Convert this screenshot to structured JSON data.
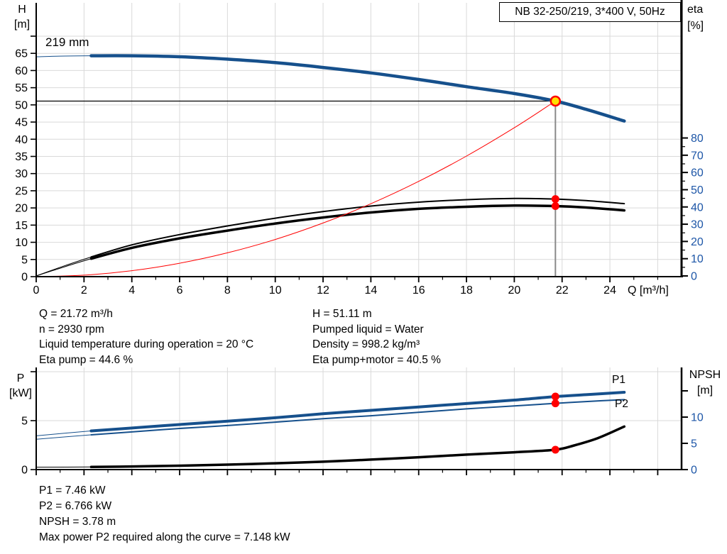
{
  "colors": {
    "curve_blue": "#16508c",
    "label_blue": "#1d56a7",
    "red": "#ff0000",
    "marker_yellow": "#ffe000",
    "grid": "#d9d9d9",
    "axis": "#000000",
    "op_line_gray": "#8a8a8a"
  },
  "texts": {
    "top_left": [
      "Q = 21.72 m³/h",
      "n = 2930 rpm",
      "Liquid temperature during operation = 20 °C",
      "Eta pump = 44.6 %"
    ],
    "top_right": [
      "H = 51.11 m",
      "Pumped liquid = Water",
      "Density = 998.2 kg/m³",
      "Eta pump+motor = 40.5 %"
    ],
    "bottom": [
      "P1 = 7.46 kW",
      "P2 = 6.766 kW",
      "NPSH = 3.78 m",
      "Max power P2 required along the curve = 7.148 kW"
    ]
  },
  "chart_data": [
    {
      "type": "line",
      "name": "qh-eta-chart",
      "title": "NB 32-250/219, 3*400 V, 50Hz",
      "x_axis": {
        "label": "Q [m³/h]",
        "min": 0,
        "max": 27,
        "major_tick_values": [
          0,
          2,
          4,
          6,
          8,
          10,
          12,
          14,
          16,
          18,
          20,
          22,
          24
        ],
        "minor_step": 1
      },
      "left_axis": {
        "label": "H [m]",
        "label_lines": [
          "H",
          "[m]"
        ],
        "min": 0,
        "max": 70,
        "major_step": 5,
        "labeled_ticks": [
          0,
          5,
          10,
          15,
          20,
          25,
          30,
          35,
          40,
          45,
          50,
          55,
          60,
          65
        ]
      },
      "right_axis": {
        "label": "eta [%]",
        "label_lines": [
          "eta",
          "[%]"
        ],
        "min": 0,
        "max": 80,
        "major_step": 10,
        "minor_step": 5,
        "labeled_ticks": [
          0,
          10,
          20,
          30,
          40,
          50,
          60,
          70,
          80
        ]
      },
      "series": [
        {
          "name": "head-curve",
          "label": "219 mm",
          "axis": "left",
          "width": 4.5,
          "thin_until": 2.3,
          "color_key": "curve_blue",
          "points": [
            [
              0,
              64.0
            ],
            [
              1,
              64.2
            ],
            [
              2.3,
              64.3
            ],
            [
              4,
              64.3
            ],
            [
              6,
              64.0
            ],
            [
              8,
              63.3
            ],
            [
              10,
              62.3
            ],
            [
              12,
              60.9
            ],
            [
              14,
              59.3
            ],
            [
              16,
              57.4
            ],
            [
              18,
              55.3
            ],
            [
              20,
              53.3
            ],
            [
              21.72,
              51.11
            ],
            [
              23,
              48.7
            ],
            [
              24.6,
              45.3
            ]
          ]
        },
        {
          "name": "eta-pump",
          "axis": "right",
          "width": 2,
          "thin_until": 2.3,
          "color_key": "axis",
          "points": [
            [
              0,
              0
            ],
            [
              1,
              5
            ],
            [
              2.3,
              11
            ],
            [
              4,
              18
            ],
            [
              6,
              24
            ],
            [
              8,
              29
            ],
            [
              10,
              33.5
            ],
            [
              12,
              37.3
            ],
            [
              14,
              40.5
            ],
            [
              16,
              42.8
            ],
            [
              18,
              44.2
            ],
            [
              20,
              44.9
            ],
            [
              21.72,
              44.6
            ],
            [
              23,
              43.7
            ],
            [
              24.6,
              41.9
            ]
          ]
        },
        {
          "name": "eta-pump-motor",
          "axis": "right",
          "width": 3.5,
          "thin_until": 2.3,
          "color_key": "axis",
          "points": [
            [
              0,
              0
            ],
            [
              1,
              4.5
            ],
            [
              2.3,
              10
            ],
            [
              4,
              16.3
            ],
            [
              6,
              21.8
            ],
            [
              8,
              26.3
            ],
            [
              10,
              30.4
            ],
            [
              12,
              33.9
            ],
            [
              14,
              36.8
            ],
            [
              16,
              38.9
            ],
            [
              18,
              40.1
            ],
            [
              20,
              40.8
            ],
            [
              21.72,
              40.5
            ],
            [
              23,
              39.7
            ],
            [
              24.6,
              38.0
            ]
          ]
        },
        {
          "name": "system-curve",
          "axis": "left",
          "width": 1,
          "thin_until": null,
          "color_key": "red",
          "points": [
            [
              0,
              0
            ],
            [
              2,
              0.43
            ],
            [
              4,
              1.73
            ],
            [
              6,
              3.9
            ],
            [
              8,
              6.93
            ],
            [
              10,
              10.83
            ],
            [
              12,
              15.6
            ],
            [
              14,
              21.23
            ],
            [
              16,
              27.73
            ],
            [
              18,
              35.1
            ],
            [
              20,
              43.34
            ],
            [
              21.72,
              51.11
            ]
          ]
        }
      ],
      "operating_point": {
        "q": 21.72,
        "h": 51.11
      },
      "markers": [
        {
          "series": "eta-pump",
          "q": 21.72,
          "value": 44.6,
          "axis": "right"
        },
        {
          "series": "eta-pump-motor",
          "q": 21.72,
          "value": 40.5,
          "axis": "right"
        }
      ]
    },
    {
      "type": "line",
      "name": "power-npsh-chart",
      "x_axis": {
        "label": "",
        "min": 0,
        "max": 27,
        "major_tick_values": [
          0,
          2,
          4,
          6,
          8,
          10,
          12,
          14,
          16,
          18,
          20,
          22,
          24,
          26
        ],
        "minor_step": 1
      },
      "left_axis": {
        "label": "P [kW]",
        "label_lines": [
          "P",
          "[kW]"
        ],
        "min": 0,
        "max": 10,
        "major_step": 5,
        "labeled_ticks": [
          0,
          5
        ]
      },
      "right_axis": {
        "label": "NPSH [m]",
        "label_lines": [
          "NPSH",
          "[m]"
        ],
        "min": 0,
        "max": 15,
        "major_step": 5,
        "minor_step": 5,
        "labeled_ticks": [
          0,
          5,
          10
        ]
      },
      "series": [
        {
          "name": "P1",
          "axis": "left",
          "width": 4,
          "thin_until": 2.3,
          "color_key": "curve_blue",
          "points": [
            [
              0,
              3.45
            ],
            [
              2.3,
              3.95
            ],
            [
              4,
              4.25
            ],
            [
              6,
              4.6
            ],
            [
              8,
              4.95
            ],
            [
              10,
              5.3
            ],
            [
              12,
              5.7
            ],
            [
              14,
              6.05
            ],
            [
              16,
              6.4
            ],
            [
              18,
              6.75
            ],
            [
              20,
              7.1
            ],
            [
              21.72,
              7.46
            ],
            [
              23,
              7.65
            ],
            [
              24.6,
              7.9
            ]
          ]
        },
        {
          "name": "P2",
          "axis": "left",
          "width": 2,
          "thin_until": 2.3,
          "color_key": "curve_blue",
          "points": [
            [
              0,
              3.1
            ],
            [
              2.3,
              3.55
            ],
            [
              4,
              3.85
            ],
            [
              6,
              4.2
            ],
            [
              8,
              4.5
            ],
            [
              10,
              4.85
            ],
            [
              12,
              5.2
            ],
            [
              14,
              5.5
            ],
            [
              16,
              5.85
            ],
            [
              18,
              6.2
            ],
            [
              20,
              6.5
            ],
            [
              21.72,
              6.766
            ],
            [
              23,
              6.95
            ],
            [
              24.6,
              7.148
            ]
          ]
        },
        {
          "name": "NPSH",
          "axis": "right",
          "width": 3.5,
          "thin_until": 2.3,
          "color_key": "axis",
          "points": [
            [
              0,
              0.45
            ],
            [
              2.3,
              0.5
            ],
            [
              4,
              0.6
            ],
            [
              6,
              0.75
            ],
            [
              8,
              0.95
            ],
            [
              10,
              1.2
            ],
            [
              12,
              1.5
            ],
            [
              14,
              1.9
            ],
            [
              16,
              2.35
            ],
            [
              18,
              2.85
            ],
            [
              20,
              3.3
            ],
            [
              21.72,
              3.78
            ],
            [
              22.5,
              4.6
            ],
            [
              23.5,
              6.0
            ],
            [
              24.6,
              8.2
            ]
          ]
        }
      ],
      "markers": [
        {
          "series": "P1",
          "q": 21.72,
          "value": 7.46,
          "axis": "left"
        },
        {
          "series": "P2",
          "q": 21.72,
          "value": 6.766,
          "axis": "left"
        },
        {
          "series": "NPSH",
          "q": 21.72,
          "value": 3.78,
          "axis": "right"
        }
      ]
    }
  ]
}
